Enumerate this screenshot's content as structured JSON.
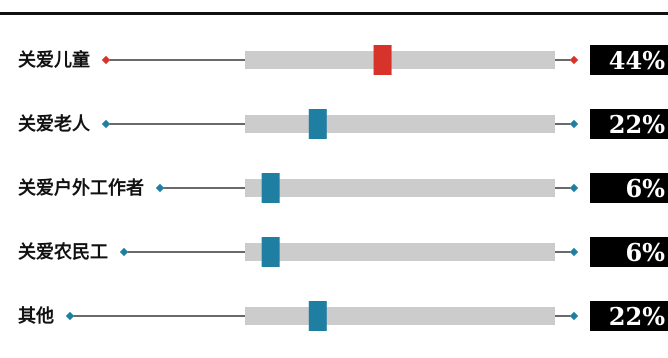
{
  "chart_data": {
    "type": "bar",
    "categories": [
      "关爱儿童",
      "关爱老人",
      "关爱户外工作者",
      "关爱农民工",
      "其他"
    ],
    "values": [
      44,
      22,
      6,
      6,
      22
    ],
    "value_labels": [
      "44%",
      "22%",
      "6%",
      "6%",
      "22%"
    ],
    "unit": "%",
    "xlim": [
      0,
      100
    ],
    "title": "",
    "highlight_index": 0,
    "colors": {
      "highlight": "#d7332a",
      "normal": "#1f7fa3",
      "track": "#cccccc",
      "connector": "#111111",
      "label_box": "#000000"
    }
  }
}
